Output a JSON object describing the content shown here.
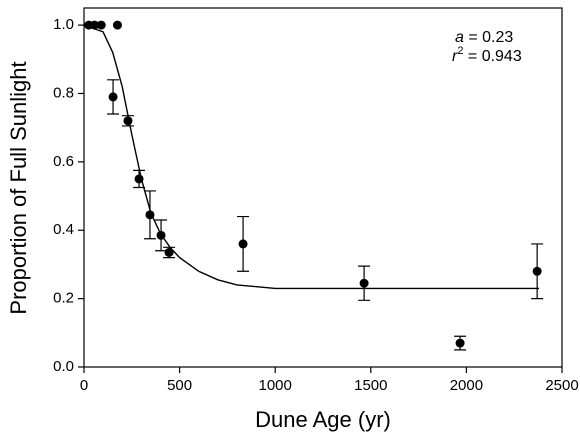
{
  "chart_data": {
    "type": "scatter",
    "x_label": "Dune Age (yr)",
    "y_label": "Proportion of Full Sunlight",
    "x": [
      25,
      55,
      90,
      175,
      152,
      230,
      288,
      345,
      403,
      445,
      832,
      1465,
      1967,
      2370
    ],
    "values": [
      1.0,
      1.0,
      1.0,
      1.0,
      0.79,
      0.72,
      0.55,
      0.445,
      0.385,
      0.335,
      0.36,
      0.245,
      0.07,
      0.28
    ],
    "errors": [
      null,
      null,
      null,
      null,
      0.05,
      0.015,
      0.025,
      0.07,
      0.045,
      0.015,
      0.08,
      0.05,
      0.02,
      0.08
    ],
    "color": "#000000",
    "fit": {
      "x": [
        0,
        100,
        150,
        200,
        250,
        300,
        350,
        400,
        450,
        500,
        600,
        700,
        800,
        1000,
        1200,
        1500,
        2000,
        2380
      ],
      "values": [
        1.0,
        0.98,
        0.92,
        0.82,
        0.68,
        0.55,
        0.45,
        0.39,
        0.35,
        0.32,
        0.28,
        0.255,
        0.24,
        0.23,
        0.23,
        0.23,
        0.23,
        0.23
      ]
    },
    "annotations": [
      {
        "var": "a",
        "text": " = 0.23"
      },
      {
        "var": "r",
        "sup": "2",
        "text": " = 0.943"
      }
    ],
    "xlim": [
      0,
      2500
    ],
    "ylim": [
      0,
      1.05
    ],
    "xticks": [
      0,
      500,
      1000,
      1500,
      2000,
      2500
    ],
    "yticks": [
      {
        "value": 0,
        "label": "0.0"
      },
      0.2,
      0.4,
      0.6,
      0.8,
      {
        "value": 1,
        "label": "1.0"
      }
    ]
  }
}
